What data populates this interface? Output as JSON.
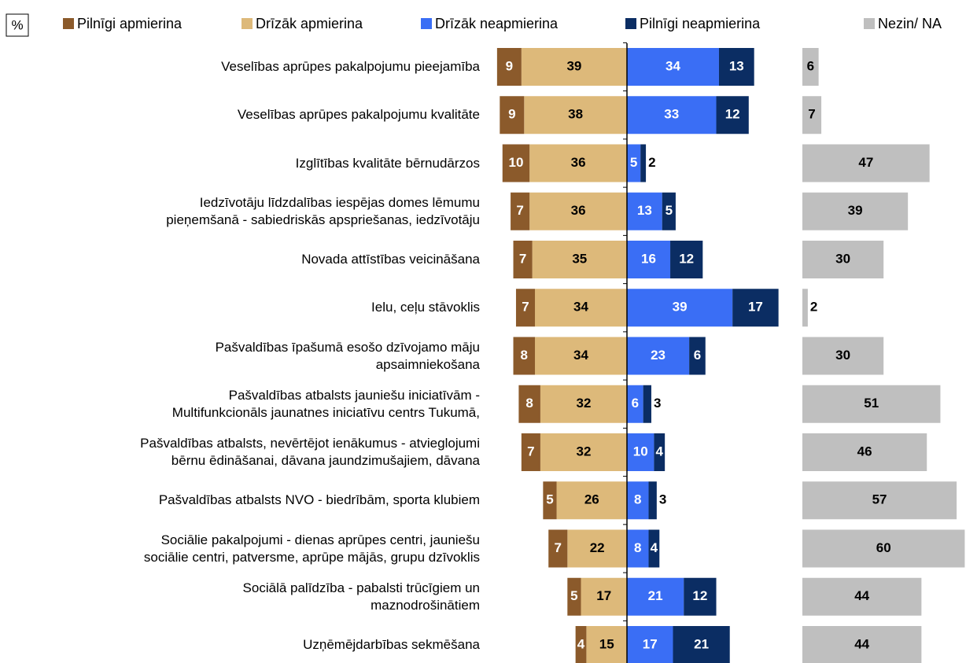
{
  "chart_data": {
    "type": "diverging_bar",
    "unit_label": "%",
    "categories": [
      "Veselības aprūpes pakalpojumu pieejamība",
      "Veselības aprūpes pakalpojumu kvalitāte",
      "Izglītības kvalitāte bērnudārzos",
      "Iedzīvotāju līdzdalības iespējas domes lēmumu\npieņemšanā - sabiedriskās apspriešanas, iedzīvotāju",
      "Novada attīstības veicināšana",
      "Ielu, ceļu stāvoklis",
      "Pašvaldības īpašumā esošo dzīvojamo māju\napsaimniekošana",
      "Pašvaldības atbalsts jauniešu iniciatīvām -\nMultifunkcionāls jaunatnes iniciatīvu centrs Tukumā,",
      "Pašvaldības atbalsts, nevērtējot ienākumus - atvieglojumi\nbērnu ēdināšanai, dāvana jaundzimušajiem, dāvana",
      "Pašvaldības atbalsts NVO - biedrībām, sporta klubiem",
      "Sociālie pakalpojumi - dienas aprūpes centri, jauniešu\nsociālie centri, patversme, aprūpe mājās, grupu dzīvoklis",
      "Sociālā palīdzība - pabalsti trūcīgiem un\nmaznodrošinātiem",
      "Uzņēmējdarbības sekmēšana"
    ],
    "series": [
      {
        "name": "Pilnīgi apmierina",
        "color": "#8b5a2b",
        "side": "left",
        "values": [
          9,
          9,
          10,
          7,
          7,
          7,
          8,
          8,
          7,
          5,
          7,
          5,
          4
        ]
      },
      {
        "name": "Drīzāk apmierina",
        "color": "#ddb97a",
        "side": "left",
        "values": [
          39,
          38,
          36,
          36,
          35,
          34,
          34,
          32,
          32,
          26,
          22,
          17,
          15
        ]
      },
      {
        "name": "Drīzāk neapmierina",
        "color": "#3a6ef5",
        "side": "right",
        "values": [
          34,
          33,
          5,
          13,
          16,
          39,
          23,
          6,
          10,
          8,
          8,
          21,
          17
        ]
      },
      {
        "name": "Pilnīgi neapmierina",
        "color": "#0b2d63",
        "side": "right",
        "values": [
          13,
          12,
          2,
          5,
          12,
          17,
          6,
          3,
          4,
          3,
          4,
          12,
          21
        ]
      },
      {
        "name": "Nezin/ NA",
        "color": "#bfbfbf",
        "side": "separate",
        "values": [
          6,
          7,
          47,
          39,
          30,
          2,
          30,
          51,
          46,
          57,
          60,
          44,
          44
        ]
      }
    ]
  }
}
